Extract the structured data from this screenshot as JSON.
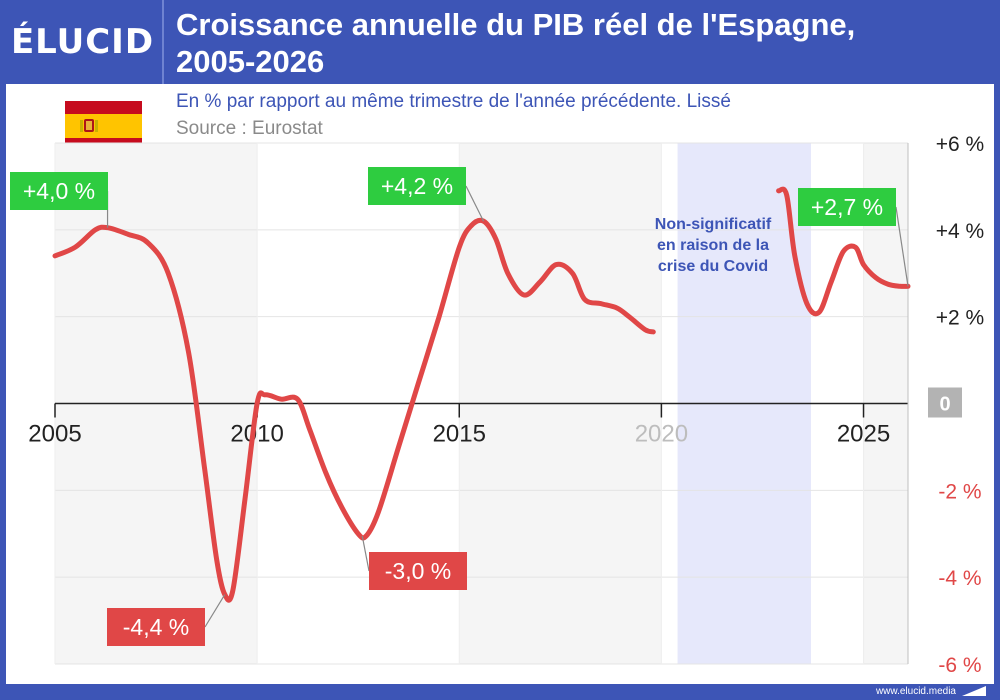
{
  "header": {
    "logo": "ÉLUCID",
    "title_line1": "Croissance annuelle du PIB réel de l'Espagne,",
    "title_line2": "2005-2026"
  },
  "subtitle": "En % par rapport au même trimestre de l'année précédente. Lissé",
  "source": "Source : Eurostat",
  "footer": {
    "site": "www.elucid.media"
  },
  "colors": {
    "brand_blue": "#3d55b6",
    "line_red": "#e04747",
    "label_green": "#2ecc40",
    "label_red": "#e04747",
    "covid_band": "#e6e8fb",
    "shade": "#f5f5f5"
  },
  "covid_note": "Non-significatif en raison de la crise du Covid",
  "chart_data": {
    "type": "line",
    "x_ticks": [
      "2005",
      "2010",
      "2015",
      "2020",
      "2025"
    ],
    "y_ticks": [
      {
        "value": 6,
        "label": "+6 %"
      },
      {
        "value": 4,
        "label": "+4 %"
      },
      {
        "value": 2,
        "label": "+2 %"
      },
      {
        "value": 0,
        "label": "0"
      },
      {
        "value": -2,
        "label": "-2 %"
      },
      {
        "value": -4,
        "label": "-4 %"
      },
      {
        "value": -6,
        "label": "-6 %"
      }
    ],
    "xlim": [
      2005,
      2026.1
    ],
    "ylim": [
      -6,
      6
    ],
    "covid_band": [
      2020.4,
      2023.7
    ],
    "series": [
      {
        "x": [
          2005.0,
          2005.5,
          2006.0,
          2006.3,
          2006.8,
          2007.3,
          2007.8,
          2008.3,
          2008.7,
          2009.0,
          2009.2,
          2009.4,
          2009.7,
          2010.0,
          2010.2,
          2010.6,
          2011.0,
          2011.3,
          2011.7,
          2012.1,
          2012.5,
          2012.7,
          2013.0,
          2013.5,
          2014.0,
          2014.5,
          2015.0,
          2015.3,
          2015.6,
          2015.9,
          2016.2,
          2016.6,
          2017.0,
          2017.4,
          2017.8,
          2018.1,
          2018.5,
          2018.9,
          2019.2,
          2019.6,
          2019.8
        ],
        "y": [
          3.4,
          3.6,
          4.0,
          4.05,
          3.9,
          3.7,
          3.0,
          1.2,
          -1.5,
          -3.6,
          -4.4,
          -4.3,
          -2.2,
          0.0,
          0.2,
          0.1,
          0.1,
          -0.6,
          -1.6,
          -2.4,
          -3.0,
          -3.05,
          -2.5,
          -1.0,
          0.5,
          2.0,
          3.6,
          4.1,
          4.2,
          3.8,
          3.0,
          2.5,
          2.8,
          3.2,
          3.0,
          2.4,
          2.3,
          2.2,
          2.0,
          1.7,
          1.65
        ]
      },
      {
        "x": [
          2022.9,
          2023.1,
          2023.3,
          2023.6,
          2023.9,
          2024.2,
          2024.5,
          2024.8,
          2025.0,
          2025.3,
          2025.6,
          2025.9,
          2026.1
        ],
        "y": [
          4.9,
          4.8,
          3.4,
          2.3,
          2.1,
          2.8,
          3.5,
          3.6,
          3.2,
          2.9,
          2.75,
          2.7,
          2.7
        ]
      }
    ],
    "annotations": [
      {
        "label": "+4,0 %",
        "x": 2006.3,
        "y": 4.05,
        "kind": "pos"
      },
      {
        "label": "-4,4 %",
        "x": 2009.2,
        "y": -4.4,
        "kind": "neg"
      },
      {
        "label": "-3,0 %",
        "x": 2012.6,
        "y": -3.05,
        "kind": "neg"
      },
      {
        "label": "+4,2 %",
        "x": 2015.6,
        "y": 4.2,
        "kind": "pos"
      },
      {
        "label": "+2,7 %",
        "x": 2026.1,
        "y": 2.7,
        "kind": "pos"
      }
    ]
  }
}
